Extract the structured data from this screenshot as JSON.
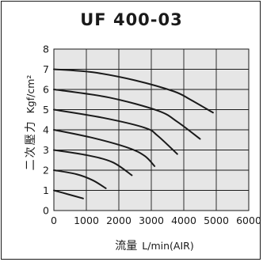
{
  "chart_data": {
    "type": "line",
    "title": "UF 400-03",
    "xlabel": "流量",
    "xlabel_unit": "L/min(AIR)",
    "ylabel": "二次壓力",
    "ylabel_unit": "Kgf/cm²",
    "xlim": [
      0,
      6000
    ],
    "ylim": [
      0,
      8
    ],
    "xticks": [
      0,
      1000,
      2000,
      3000,
      4000,
      5000,
      6000
    ],
    "xtick_labels": [
      "0",
      "1000",
      "2000",
      "3000",
      "4000",
      "5000",
      "6000"
    ],
    "yticks": [
      0,
      1,
      2,
      3,
      4,
      5,
      6,
      7,
      8
    ],
    "ytick_labels": [
      "0",
      "1",
      "2",
      "3",
      "4",
      "5",
      "6",
      "7",
      "8"
    ],
    "grid": true,
    "background": "#e6e6e6",
    "line_color": "#1a1a1a",
    "series": [
      {
        "points": [
          [
            0,
            1.0
          ],
          [
            450,
            0.8
          ],
          [
            900,
            0.6
          ]
        ]
      },
      {
        "points": [
          [
            0,
            2.0
          ],
          [
            700,
            1.8
          ],
          [
            1200,
            1.5
          ],
          [
            1600,
            1.1
          ]
        ]
      },
      {
        "points": [
          [
            0,
            3.0
          ],
          [
            1000,
            2.75
          ],
          [
            1800,
            2.4
          ],
          [
            2400,
            1.75
          ]
        ]
      },
      {
        "points": [
          [
            0,
            4.0
          ],
          [
            1200,
            3.6
          ],
          [
            2300,
            3.1
          ],
          [
            2800,
            2.7
          ],
          [
            3100,
            2.2
          ]
        ]
      },
      {
        "points": [
          [
            0,
            5.0
          ],
          [
            1500,
            4.6
          ],
          [
            2800,
            4.1
          ],
          [
            3200,
            3.7
          ],
          [
            3800,
            2.8
          ]
        ]
      },
      {
        "points": [
          [
            0,
            6.0
          ],
          [
            1700,
            5.6
          ],
          [
            3200,
            4.95
          ],
          [
            3800,
            4.4
          ],
          [
            4500,
            3.55
          ]
        ]
      },
      {
        "points": [
          [
            0,
            7.0
          ],
          [
            1200,
            6.85
          ],
          [
            2500,
            6.45
          ],
          [
            3700,
            5.9
          ],
          [
            4200,
            5.5
          ],
          [
            4900,
            4.85
          ]
        ]
      }
    ]
  }
}
